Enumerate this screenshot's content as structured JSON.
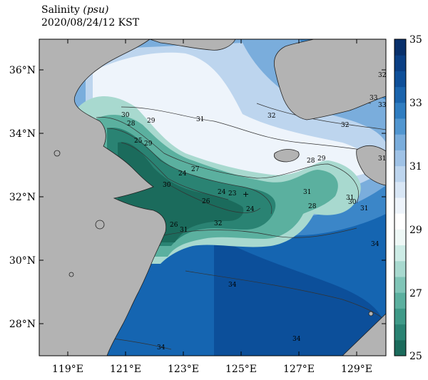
{
  "title": {
    "variable": "Salinity",
    "unit": "(psu)",
    "datetime": "2020/08/24/12 KST"
  },
  "map": {
    "lon_range": [
      118,
      130
    ],
    "lat_range": [
      27,
      37
    ],
    "x_ticks": [
      "119°E",
      "121°E",
      "123°E",
      "125°E",
      "127°E",
      "129°E"
    ],
    "y_ticks": [
      "36°N",
      "34°N",
      "32°N",
      "30°N",
      "28°N"
    ],
    "land_color": "#b3b3b3"
  },
  "colorbar": {
    "min": 25,
    "max": 35,
    "tick_labels": [
      "35",
      "33",
      "31",
      "29",
      "27",
      "25"
    ],
    "colors": [
      "#1b6b5c",
      "#2a8373",
      "#3f9a88",
      "#5bb09f",
      "#80c5b7",
      "#a8d9cf",
      "#cdece6",
      "#eef8f6",
      "#ffffff",
      "#eef4fb",
      "#d8e6f5",
      "#bdd5ee",
      "#9fc2e6",
      "#7aaddc",
      "#5196d0",
      "#2f7dc1",
      "#1a64ad",
      "#0e4f99",
      "#0a3f84",
      "#08306b"
    ]
  },
  "contour_labels": [
    "30",
    "28",
    "29",
    "25",
    "29",
    "31",
    "27",
    "24",
    "30",
    "26",
    "24",
    "23",
    "24",
    "31",
    "26",
    "31",
    "28",
    "29",
    "31",
    "31",
    "28",
    "30",
    "32",
    "32",
    "32",
    "33",
    "33",
    "34",
    "34",
    "34",
    "34",
    "32",
    "31"
  ]
}
